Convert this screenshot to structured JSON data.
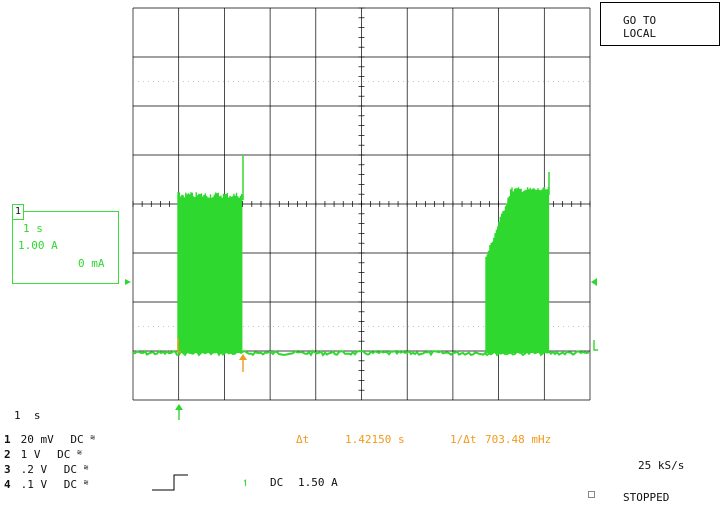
{
  "button": {
    "line1": "GO TO",
    "line2": "LOCAL"
  },
  "channel_box": {
    "number": "1",
    "timebase": "1 s",
    "scale": "1.00 A",
    "offset": "0 mA"
  },
  "timebase_readout": "1  s",
  "channels": [
    {
      "num": "1",
      "volts": "20 mV",
      "coupling": "DC",
      "icon": "bandwidth-limit-icon"
    },
    {
      "num": "2",
      "volts": " 1  V",
      "coupling": "DC",
      "icon": "bandwidth-limit-icon"
    },
    {
      "num": "3",
      "volts": ".2  V",
      "coupling": "DC",
      "icon": "bandwidth-limit-icon"
    },
    {
      "num": "4",
      "volts": ".1  V",
      "coupling": "DC",
      "icon": "bandwidth-limit-icon"
    }
  ],
  "measurement": {
    "delta_label": "Δt",
    "delta_value": "1.42150 s",
    "freq_label": "1/Δt",
    "freq_value": "703.48 mHz"
  },
  "trigger": {
    "channel": "1",
    "coupling": "DC",
    "level": "1.50 A"
  },
  "sample_rate": "25 kS/s",
  "run_state": "STOPPED",
  "colors": {
    "trace": "#2fd82f",
    "cursor": "#f29a1a",
    "grid": "#000000"
  }
}
